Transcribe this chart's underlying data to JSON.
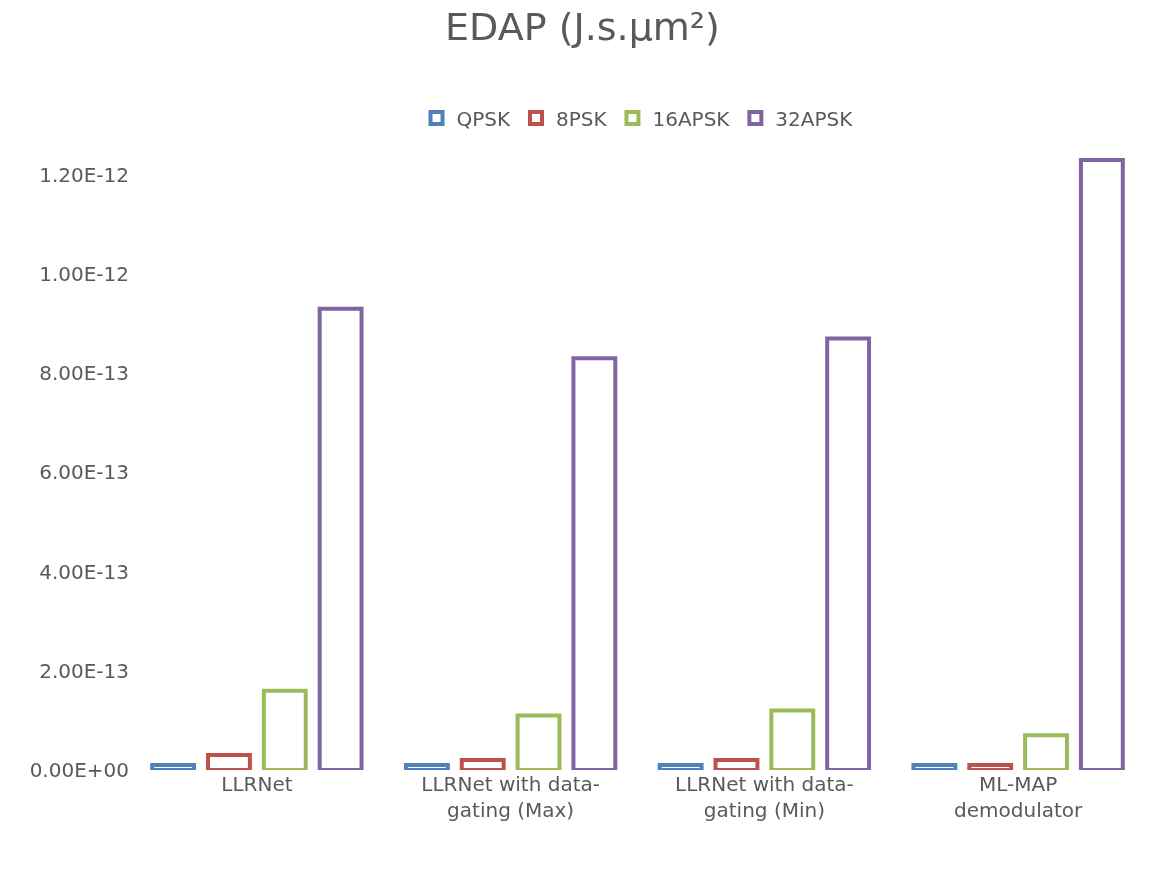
{
  "chart_data": {
    "type": "bar",
    "title": "EDAP (J.s.μm²)",
    "categories": [
      "LLRNet",
      "LLRNet with data-gating (Max)",
      "LLRNet with data-gating (Min)",
      "ML-MAP demodulator"
    ],
    "series": [
      {
        "name": "QPSK",
        "color": "#4f81bd",
        "values": [
          1e-14,
          1e-14,
          1e-14,
          1e-14
        ]
      },
      {
        "name": "8PSK",
        "color": "#c0504d",
        "values": [
          3e-14,
          2e-14,
          2e-14,
          1e-14
        ]
      },
      {
        "name": "16APSK",
        "color": "#9bbb59",
        "values": [
          1.6e-13,
          1.1e-13,
          1.2e-13,
          7e-14
        ]
      },
      {
        "name": "32APSK",
        "color": "#8064a2",
        "values": [
          9.3e-13,
          8.3e-13,
          8.7e-13,
          1.23e-12
        ]
      }
    ],
    "ylim": [
      0,
      1.25e-12
    ],
    "yticks": [
      {
        "value": 0,
        "label": "0.00E+00"
      },
      {
        "value": 2e-13,
        "label": "2.00E-13"
      },
      {
        "value": 4e-13,
        "label": "4.00E-13"
      },
      {
        "value": 6e-13,
        "label": "6.00E-13"
      },
      {
        "value": 8e-13,
        "label": "8.00E-13"
      },
      {
        "value": 1e-12,
        "label": "1.00E-12"
      },
      {
        "value": 1.2e-12,
        "label": "1.20E-12"
      }
    ],
    "legend": "top"
  }
}
